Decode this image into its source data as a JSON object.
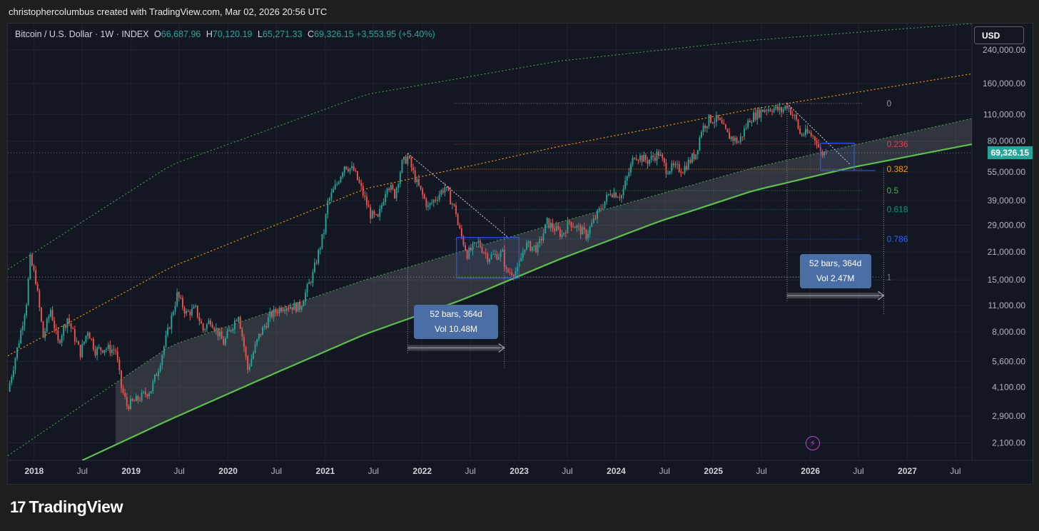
{
  "header": {
    "attribution": "christophercolumbus created with TradingView.com, Mar 02, 2026 20:56 UTC"
  },
  "legend": {
    "symbol": "Bitcoin / U.S. Dollar · 1W · INDEX",
    "open_label": "O",
    "open": "66,687.96",
    "high_label": "H",
    "high": "70,120.19",
    "low_label": "L",
    "low": "65,271.33",
    "close_label": "C",
    "close": "69,326.15",
    "change": "+3,553.95 (+5.40%)"
  },
  "currency_button": "USD",
  "current_price_label": "69,326.15",
  "footer": {
    "logo_mark": "17",
    "logo_text": "TradingView"
  },
  "colors": {
    "background": "#131722",
    "up": "#26a69a",
    "down": "#ef5350",
    "grid": "#1f2433",
    "text": "#b2b5be",
    "channel_outer": "#4caf50",
    "channel_mid": "#ff9800",
    "channel_main": "#5cbf4e"
  },
  "chart_data": {
    "type": "line",
    "title": "Bitcoin / U.S. Dollar · 1W · INDEX",
    "yscale": "log",
    "ylim": [
      1700,
      330000
    ],
    "xlim": [
      "2017-09-24",
      "2027-09-01"
    ],
    "y_ticks": [
      {
        "value": 240000,
        "label": "240,000.00"
      },
      {
        "value": 160000,
        "label": "160,000.00"
      },
      {
        "value": 110000,
        "label": "110,000.00"
      },
      {
        "value": 80000,
        "label": "80,000.00"
      },
      {
        "value": 55000,
        "label": "55,000.00"
      },
      {
        "value": 39000,
        "label": "39,000.00"
      },
      {
        "value": 29000,
        "label": "29,000.00"
      },
      {
        "value": 21000,
        "label": "21,000.00"
      },
      {
        "value": 15000,
        "label": "15,000.00"
      },
      {
        "value": 11000,
        "label": "11,000.00"
      },
      {
        "value": 8000,
        "label": "8,000.00"
      },
      {
        "value": 5600,
        "label": "5,600.00"
      },
      {
        "value": 4100,
        "label": "4,100.00"
      },
      {
        "value": 2900,
        "label": "2,900.00"
      },
      {
        "value": 2100,
        "label": "2,100.00"
      }
    ],
    "x_ticks": [
      {
        "date": "2018-01-01",
        "label": "2018",
        "major": true
      },
      {
        "date": "2018-07-01",
        "label": "Jul",
        "major": false
      },
      {
        "date": "2019-01-01",
        "label": "2019",
        "major": true
      },
      {
        "date": "2019-07-01",
        "label": "Jul",
        "major": false
      },
      {
        "date": "2020-01-01",
        "label": "2020",
        "major": true
      },
      {
        "date": "2020-07-01",
        "label": "Jul",
        "major": false
      },
      {
        "date": "2021-01-01",
        "label": "2021",
        "major": true
      },
      {
        "date": "2021-07-01",
        "label": "Jul",
        "major": false
      },
      {
        "date": "2022-01-01",
        "label": "2022",
        "major": true
      },
      {
        "date": "2022-07-01",
        "label": "Jul",
        "major": false
      },
      {
        "date": "2023-01-01",
        "label": "2023",
        "major": true
      },
      {
        "date": "2023-07-01",
        "label": "Jul",
        "major": false
      },
      {
        "date": "2024-01-01",
        "label": "2024",
        "major": true
      },
      {
        "date": "2024-07-01",
        "label": "Jul",
        "major": false
      },
      {
        "date": "2025-01-01",
        "label": "2025",
        "major": true
      },
      {
        "date": "2025-07-01",
        "label": "Jul",
        "major": false
      },
      {
        "date": "2026-01-01",
        "label": "2026",
        "major": true
      },
      {
        "date": "2026-07-01",
        "label": "Jul",
        "major": false
      },
      {
        "date": "2027-01-01",
        "label": "2027",
        "major": true
      },
      {
        "date": "2027-07-01",
        "label": "Jul",
        "major": false
      }
    ],
    "price_path": [
      [
        "2017-09-24",
        3900
      ],
      [
        "2017-10-08",
        4800
      ],
      [
        "2017-11-05",
        7200
      ],
      [
        "2017-12-03",
        11500
      ],
      [
        "2017-12-17",
        19200
      ],
      [
        "2018-01-07",
        15000
      ],
      [
        "2018-02-04",
        7500
      ],
      [
        "2018-03-04",
        10500
      ],
      [
        "2018-04-01",
        7000
      ],
      [
        "2018-05-06",
        9500
      ],
      [
        "2018-06-24",
        6200
      ],
      [
        "2018-07-22",
        8200
      ],
      [
        "2018-08-19",
        6400
      ],
      [
        "2018-09-23",
        6600
      ],
      [
        "2018-11-04",
        6400
      ],
      [
        "2018-11-25",
        4100
      ],
      [
        "2018-12-16",
        3300
      ],
      [
        "2019-01-20",
        3500
      ],
      [
        "2019-03-17",
        4000
      ],
      [
        "2019-04-14",
        5200
      ],
      [
        "2019-05-19",
        8000
      ],
      [
        "2019-06-23",
        12500
      ],
      [
        "2019-07-28",
        10000
      ],
      [
        "2019-09-01",
        10500
      ],
      [
        "2019-09-29",
        8200
      ],
      [
        "2019-10-27",
        9300
      ],
      [
        "2019-12-15",
        7000
      ],
      [
        "2020-02-09",
        10000
      ],
      [
        "2020-03-15",
        5100
      ],
      [
        "2020-04-26",
        7600
      ],
      [
        "2020-06-07",
        9700
      ],
      [
        "2020-07-26",
        11000
      ],
      [
        "2020-09-27",
        10800
      ],
      [
        "2020-11-15",
        16000
      ],
      [
        "2020-12-27",
        27000
      ],
      [
        "2021-01-10",
        38000
      ],
      [
        "2021-02-14",
        48000
      ],
      [
        "2021-03-14",
        60000
      ],
      [
        "2021-04-18",
        56000
      ],
      [
        "2021-05-16",
        45000
      ],
      [
        "2021-06-20",
        33000
      ],
      [
        "2021-07-18",
        31000
      ],
      [
        "2021-08-22",
        48000
      ],
      [
        "2021-09-19",
        42000
      ],
      [
        "2021-10-17",
        61000
      ],
      [
        "2021-11-07",
        66000
      ],
      [
        "2021-12-12",
        48000
      ],
      [
        "2022-01-23",
        36000
      ],
      [
        "2022-03-27",
        46000
      ],
      [
        "2022-05-08",
        34000
      ],
      [
        "2022-05-15",
        29000
      ],
      [
        "2022-06-19",
        20500
      ],
      [
        "2022-07-31",
        23500
      ],
      [
        "2022-09-04",
        19800
      ],
      [
        "2022-10-30",
        20600
      ],
      [
        "2022-11-13",
        16500
      ],
      [
        "2022-12-25",
        16700
      ],
      [
        "2023-01-22",
        22800
      ],
      [
        "2023-03-12",
        22000
      ],
      [
        "2023-04-16",
        30000
      ],
      [
        "2023-06-11",
        25800
      ],
      [
        "2023-07-09",
        30300
      ],
      [
        "2023-09-10",
        25800
      ],
      [
        "2023-10-29",
        34500
      ],
      [
        "2023-12-10",
        43500
      ],
      [
        "2024-01-21",
        41500
      ],
      [
        "2024-03-10",
        68000
      ],
      [
        "2024-04-28",
        63000
      ],
      [
        "2024-06-09",
        69000
      ],
      [
        "2024-07-07",
        57000
      ],
      [
        "2024-08-04",
        58000
      ],
      [
        "2024-09-08",
        57000
      ],
      [
        "2024-10-27",
        69000
      ],
      [
        "2024-11-17",
        92000
      ],
      [
        "2024-12-15",
        104000
      ],
      [
        "2025-01-19",
        103000
      ],
      [
        "2025-02-23",
        86000
      ],
      [
        "2025-04-06",
        79000
      ],
      [
        "2025-05-18",
        105000
      ],
      [
        "2025-07-13",
        118000
      ],
      [
        "2025-08-10",
        119000
      ],
      [
        "2025-09-14",
        115000
      ],
      [
        "2025-10-05",
        124000
      ],
      [
        "2025-11-09",
        102000
      ],
      [
        "2025-11-23",
        87000
      ],
      [
        "2025-12-28",
        87500
      ],
      [
        "2026-01-25",
        81000
      ],
      [
        "2026-02-08",
        69000
      ],
      [
        "2026-03-01",
        69326
      ]
    ],
    "channel_lines": [
      {
        "role": "outer",
        "points": [
          [
            "2017-09-24",
            17000
          ],
          [
            "2019-06-01",
            60000
          ],
          [
            "2021-06-01",
            140000
          ],
          [
            "2023-06-01",
            210000
          ],
          [
            "2025-06-01",
            270000
          ],
          [
            "2027-09-01",
            330000
          ]
        ]
      },
      {
        "role": "mid",
        "points": [
          [
            "2017-09-24",
            6000
          ],
          [
            "2019-06-01",
            17500
          ],
          [
            "2021-06-01",
            45000
          ],
          [
            "2023-06-01",
            75000
          ],
          [
            "2025-06-01",
            118000
          ],
          [
            "2027-09-01",
            180000
          ]
        ]
      },
      {
        "role": "lower",
        "points": [
          [
            "2017-09-24",
            1800
          ],
          [
            "2019-06-01",
            6800
          ],
          [
            "2021-06-01",
            15000
          ],
          [
            "2023-06-01",
            30000
          ],
          [
            "2025-06-01",
            58000
          ],
          [
            "2027-09-01",
            105000
          ]
        ]
      },
      {
        "role": "main",
        "points": [
          [
            "2018-07-01",
            1700
          ],
          [
            "2019-06-01",
            2800
          ],
          [
            "2020-06-01",
            4700
          ],
          [
            "2021-06-01",
            7800
          ],
          [
            "2022-06-01",
            11800
          ],
          [
            "2023-06-01",
            19200
          ],
          [
            "2024-06-01",
            30000
          ],
          [
            "2025-06-01",
            44000
          ],
          [
            "2026-06-01",
            58000
          ],
          [
            "2027-09-01",
            77000
          ]
        ]
      }
    ],
    "fib_levels": [
      {
        "level": "0",
        "price": 126000,
        "color": "#9598a1"
      },
      {
        "level": "0.236",
        "price": 77000,
        "color": "#f23645"
      },
      {
        "level": "0.382",
        "price": 57000,
        "color": "#ff9800"
      },
      {
        "level": "0.5",
        "price": 44000,
        "color": "#4caf50"
      },
      {
        "level": "0.618",
        "price": 35000,
        "color": "#089981"
      },
      {
        "level": "0.786",
        "price": 24500,
        "color": "#2962ff"
      },
      {
        "level": "1",
        "price": 15500,
        "color": "#787b86"
      }
    ],
    "annotations": [
      {
        "type": "ruler",
        "text_1": "52 bars, 364d",
        "text_2": "Vol 10.48M",
        "start": "2021-11-07",
        "end": "2022-11-06"
      },
      {
        "type": "ruler",
        "text_1": "52 bars, 364d",
        "text_2": "Vol 2.47M",
        "start": "2025-10-05",
        "end": "2026-10-04"
      }
    ]
  }
}
